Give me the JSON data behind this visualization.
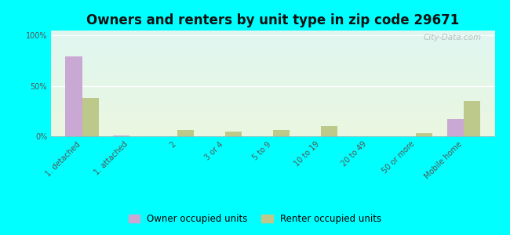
{
  "title": "Owners and renters by unit type in zip code 29671",
  "categories": [
    "1. detached",
    "1. attached",
    "2",
    "3 or 4",
    "5 to 9",
    "10 to 19",
    "20 to 49",
    "50 or more",
    "Mobile home"
  ],
  "owner_values": [
    79,
    1,
    0,
    0,
    0,
    0,
    0,
    0,
    17
  ],
  "renter_values": [
    38,
    0,
    6,
    5,
    6,
    10,
    0,
    3,
    35
  ],
  "owner_color": "#c9a8d4",
  "renter_color": "#bcc98a",
  "outer_bg": "#00ffff",
  "yticks": [
    0,
    50,
    100
  ],
  "ylabels": [
    "0%",
    "50%",
    "100%"
  ],
  "ylim": [
    0,
    105
  ],
  "bar_width": 0.35,
  "title_fontsize": 12,
  "legend_fontsize": 8.5,
  "tick_fontsize": 7,
  "watermark": "City-Data.com"
}
